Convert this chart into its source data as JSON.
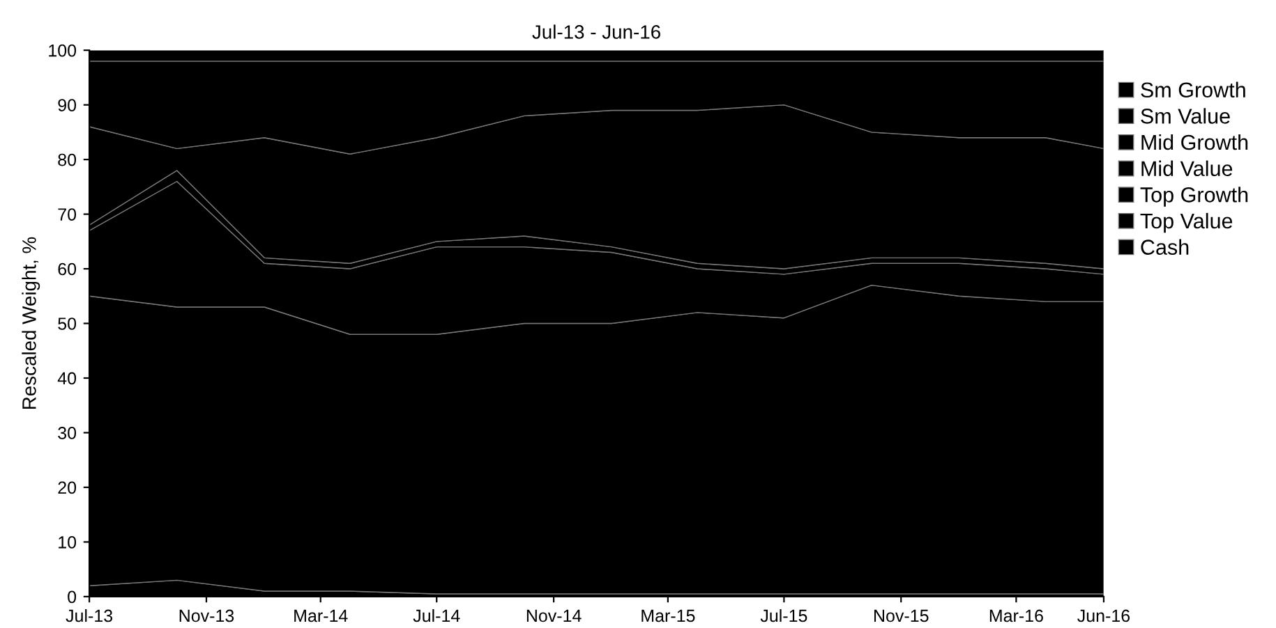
{
  "chart_data": {
    "type": "area",
    "stacked": true,
    "title": "Jul-13 - Jun-16",
    "ylabel": "Rescaled Weight, %",
    "x": [
      "2013-07",
      "2013-10",
      "2014-01",
      "2014-04",
      "2014-07",
      "2014-10",
      "2015-01",
      "2015-04",
      "2015-07",
      "2015-10",
      "2016-01",
      "2016-04",
      "2016-06"
    ],
    "series": [
      {
        "name": "Sm Growth",
        "color": "#000000",
        "values": [
          2,
          3,
          1,
          1,
          0.5,
          0.5,
          0.5,
          0.5,
          0.5,
          0.5,
          0.5,
          0.5,
          0.5
        ]
      },
      {
        "name": "Sm Value",
        "color": "#000000",
        "values": [
          53,
          50,
          52,
          47,
          47.5,
          49.5,
          49.5,
          51.5,
          50.5,
          56.5,
          54.5,
          53.5,
          53.5
        ]
      },
      {
        "name": "Mid Growth",
        "color": "#000000",
        "values": [
          12,
          23,
          8,
          12,
          16,
          14,
          13,
          8,
          8,
          4,
          6,
          6,
          5
        ]
      },
      {
        "name": "Mid Value",
        "color": "#000000",
        "values": [
          1,
          2,
          1,
          1,
          1,
          2,
          1,
          1,
          1,
          1,
          1,
          1,
          1
        ]
      },
      {
        "name": "Top Growth",
        "color": "#000000",
        "values": [
          18,
          4,
          22,
          20,
          19,
          22,
          25,
          28,
          30,
          23,
          22,
          23,
          22
        ]
      },
      {
        "name": "Top Value",
        "color": "#000000",
        "values": [
          12,
          16,
          14,
          17,
          14,
          10,
          9,
          9,
          8,
          13,
          14,
          14,
          16
        ]
      },
      {
        "name": "Cash",
        "color": "#000000",
        "values": [
          2,
          2,
          2,
          2,
          2,
          2,
          2,
          2,
          2,
          2,
          2,
          2,
          2
        ]
      }
    ],
    "xlim": [
      "2013-07",
      "2016-06"
    ],
    "xticks": [
      {
        "value": "2013-07",
        "label": "Jul-13"
      },
      {
        "value": "2013-11",
        "label": "Nov-13"
      },
      {
        "value": "2014-03",
        "label": "Mar-14"
      },
      {
        "value": "2014-07",
        "label": "Jul-14"
      },
      {
        "value": "2014-11",
        "label": "Nov-14"
      },
      {
        "value": "2015-03",
        "label": "Mar-15"
      },
      {
        "value": "2015-07",
        "label": "Jul-15"
      },
      {
        "value": "2015-11",
        "label": "Nov-15"
      },
      {
        "value": "2016-03",
        "label": "Mar-16"
      },
      {
        "value": "2016-06",
        "label": "Jun-16"
      }
    ],
    "ylim": [
      0,
      100
    ],
    "yticks": [
      0,
      10,
      20,
      30,
      40,
      50,
      60,
      70,
      80,
      90,
      100
    ],
    "grid": false,
    "legend": "right"
  }
}
